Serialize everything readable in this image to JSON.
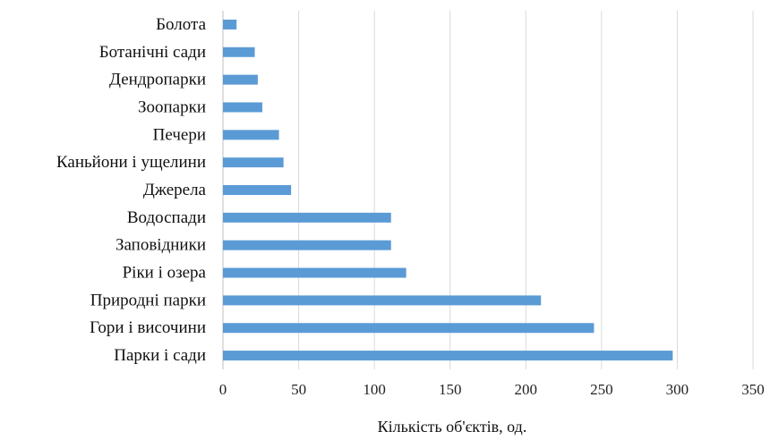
{
  "chart_data": {
    "type": "bar",
    "orientation": "horizontal",
    "categories": [
      "Болота",
      "Ботанічні сади",
      "Дендропарки",
      "Зоопарки",
      "Печери",
      "Каньйони і ущелини",
      "Джерела",
      "Водоспади",
      "Заповідники",
      "Ріки і озера",
      "Природні парки",
      "Гори і височини",
      "Парки і сади"
    ],
    "values": [
      9,
      21,
      23,
      26,
      37,
      40,
      45,
      111,
      111,
      121,
      210,
      245,
      297
    ],
    "xlabel": "Кількість об'єктів, од.",
    "xlim": [
      0,
      350
    ],
    "xticks": [
      0,
      50,
      100,
      150,
      200,
      250,
      300,
      350
    ],
    "grid": "vertical",
    "legend": "none",
    "colors": {
      "bar": "#5b9bd5"
    }
  }
}
